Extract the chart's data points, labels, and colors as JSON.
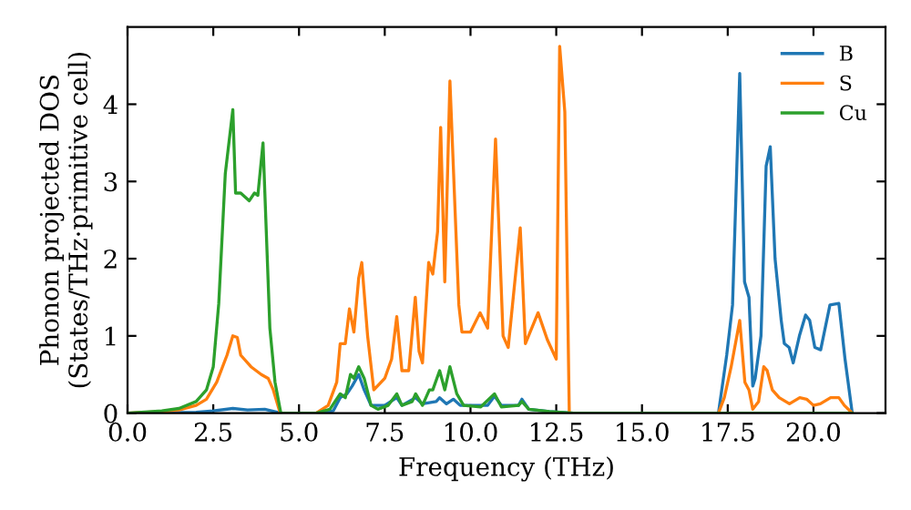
{
  "chart_data": {
    "type": "line",
    "xlabel": "Frequency (THz)",
    "ylabel": "Phonon projected DOS\n(States/THz·primitive cell)",
    "xlim": [
      0,
      22.1
    ],
    "ylim": [
      0,
      5
    ],
    "xticks": [
      {
        "value": 0,
        "label": "0.0"
      },
      2.5,
      {
        "value": 5,
        "label": "5.0"
      },
      7.5,
      {
        "value": 10,
        "label": "10.0"
      },
      12.5,
      {
        "value": 15,
        "label": "15.0"
      },
      17.5,
      {
        "value": 20,
        "label": "20.0"
      }
    ],
    "yticks": [
      0,
      1,
      2,
      3,
      4
    ],
    "legend": "top right",
    "grid": false,
    "series": [
      {
        "name": "B",
        "color": "#1f77b4",
        "x": [
          0,
          2,
          2.5,
          3.07,
          3.5,
          4.0,
          4.47,
          5.5,
          6.0,
          6.2,
          6.4,
          6.55,
          6.74,
          6.9,
          7.1,
          7.5,
          7.85,
          8.0,
          8.4,
          8.6,
          9.0,
          9.1,
          9.3,
          9.5,
          9.7,
          10.0,
          10.5,
          10.7,
          10.9,
          11.4,
          11.5,
          11.7,
          12.3,
          13,
          17.23,
          17.47,
          17.64,
          17.85,
          17.99,
          18.12,
          18.23,
          18.3,
          18.47,
          18.62,
          18.74,
          18.88,
          19.06,
          19.15,
          19.29,
          19.41,
          19.59,
          19.77,
          19.89,
          20.04,
          20.21,
          20.48,
          20.74,
          20.92,
          21.13
        ],
        "values": [
          0,
          0.01,
          0.03,
          0.06,
          0.04,
          0.05,
          0,
          0,
          0.03,
          0.2,
          0.25,
          0.35,
          0.5,
          0.3,
          0.1,
          0.1,
          0.2,
          0.1,
          0.2,
          0.12,
          0.15,
          0.2,
          0.12,
          0.18,
          0.1,
          0.1,
          0.1,
          0.22,
          0.1,
          0.1,
          0.18,
          0.05,
          0.02,
          0,
          0,
          0.75,
          1.4,
          4.4,
          1.7,
          1.5,
          0.35,
          0.45,
          1.0,
          3.2,
          3.45,
          2.0,
          1.2,
          0.9,
          0.85,
          0.65,
          1.0,
          1.27,
          1.2,
          0.85,
          0.82,
          1.4,
          1.42,
          0.7,
          0
        ]
      },
      {
        "name": "S",
        "color": "#ff7f0e",
        "x": [
          0,
          1,
          1.5,
          2,
          2.3,
          2.6,
          2.9,
          3.07,
          3.2,
          3.3,
          3.6,
          3.9,
          4.1,
          4.25,
          4.45,
          5.5,
          5.85,
          6.1,
          6.2,
          6.35,
          6.47,
          6.6,
          6.74,
          6.83,
          7.0,
          7.18,
          7.5,
          7.7,
          7.85,
          8.0,
          8.2,
          8.39,
          8.5,
          8.6,
          8.78,
          8.9,
          9.04,
          9.13,
          9.25,
          9.4,
          9.66,
          9.75,
          10.0,
          10.28,
          10.5,
          10.73,
          10.95,
          11.1,
          11.45,
          11.6,
          11.97,
          12.24,
          12.5,
          12.6,
          12.75,
          12.88,
          17.23,
          17.4,
          17.6,
          17.85,
          18.0,
          18.12,
          18.23,
          18.4,
          18.55,
          18.65,
          18.8,
          19.0,
          19.3,
          19.6,
          19.8,
          20.0,
          20.2,
          20.5,
          20.74,
          20.9,
          21.13
        ],
        "values": [
          0,
          0.02,
          0.04,
          0.1,
          0.18,
          0.4,
          0.75,
          1.0,
          0.98,
          0.75,
          0.6,
          0.5,
          0.45,
          0.3,
          0,
          0,
          0.1,
          0.4,
          0.9,
          0.9,
          1.35,
          1.05,
          1.75,
          1.95,
          1.0,
          0.3,
          0.45,
          0.7,
          1.25,
          0.55,
          0.55,
          1.5,
          0.8,
          0.65,
          1.95,
          1.8,
          2.35,
          3.7,
          1.7,
          4.3,
          1.4,
          1.05,
          1.05,
          1.3,
          1.1,
          3.55,
          1.0,
          0.85,
          2.4,
          0.9,
          1.3,
          0.95,
          0.7,
          4.75,
          3.9,
          0,
          0,
          0.2,
          0.6,
          1.2,
          0.4,
          0.3,
          0.05,
          0.15,
          0.6,
          0.55,
          0.3,
          0.2,
          0.12,
          0.2,
          0.18,
          0.1,
          0.12,
          0.2,
          0.2,
          0.1,
          0
        ]
      },
      {
        "name": "Cu",
        "color": "#2ca02c",
        "x": [
          0,
          1,
          1.5,
          2,
          2.3,
          2.5,
          2.66,
          2.85,
          3.07,
          3.15,
          3.3,
          3.55,
          3.7,
          3.8,
          3.95,
          4.15,
          4.3,
          4.47,
          5.5,
          5.9,
          6.2,
          6.35,
          6.5,
          6.6,
          6.74,
          6.9,
          7.1,
          7.3,
          7.6,
          7.85,
          8.0,
          8.3,
          8.4,
          8.6,
          8.8,
          8.9,
          9.1,
          9.25,
          9.4,
          9.6,
          9.8,
          10.3,
          10.7,
          10.9,
          11.4,
          11.5,
          11.7,
          12.3,
          13,
          21.13
        ],
        "values": [
          0,
          0.03,
          0.06,
          0.15,
          0.3,
          0.6,
          1.42,
          3.1,
          3.93,
          2.85,
          2.85,
          2.75,
          2.85,
          2.82,
          3.5,
          1.1,
          0.4,
          0,
          0,
          0.05,
          0.25,
          0.2,
          0.5,
          0.45,
          0.6,
          0.45,
          0.1,
          0.05,
          0.1,
          0.25,
          0.1,
          0.15,
          0.25,
          0.1,
          0.3,
          0.3,
          0.55,
          0.3,
          0.6,
          0.25,
          0.1,
          0.08,
          0.25,
          0.08,
          0.1,
          0.15,
          0.05,
          0.02,
          0,
          0
        ]
      }
    ]
  }
}
